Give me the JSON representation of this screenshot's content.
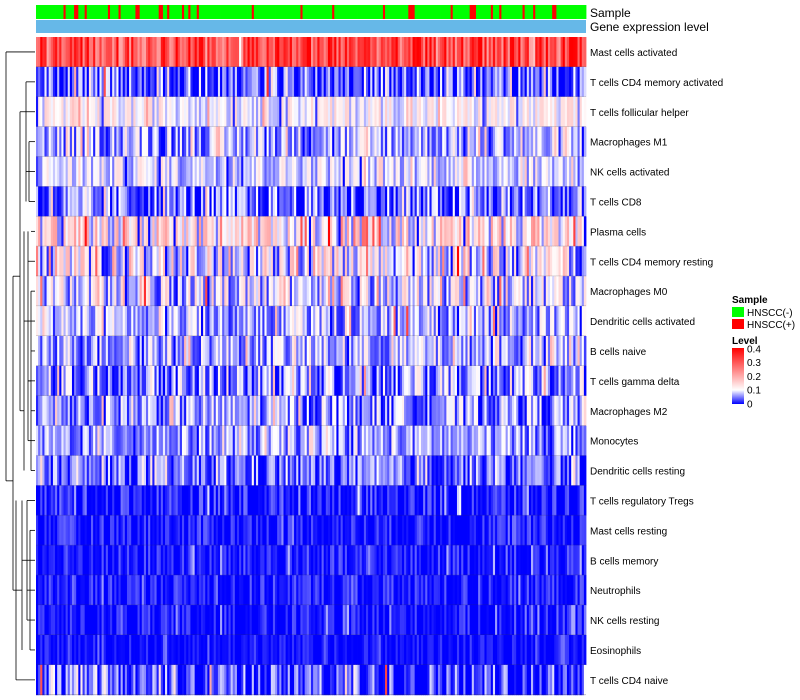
{
  "chart_data": {
    "type": "heatmap",
    "title": "",
    "annotation_tracks": [
      {
        "label": "Sample",
        "kind": "categorical"
      },
      {
        "label": "Gene expression level",
        "kind": "continuous"
      }
    ],
    "rows": [
      {
        "label": "Mast cells activated",
        "mean": 0.32,
        "spread": 0.1,
        "red_frac": 0.45
      },
      {
        "label": "T cells CD4 memory activated",
        "mean": 0.04,
        "spread": 0.06,
        "red_frac": 0.02
      },
      {
        "label": "T cells follicular helper",
        "mean": 0.11,
        "spread": 0.05,
        "red_frac": 0.0
      },
      {
        "label": "Macrophages M1",
        "mean": 0.07,
        "spread": 0.06,
        "red_frac": 0.0
      },
      {
        "label": "NK cells activated",
        "mean": 0.09,
        "spread": 0.05,
        "red_frac": 0.0
      },
      {
        "label": "T cells CD8",
        "mean": 0.04,
        "spread": 0.07,
        "red_frac": 0.0
      },
      {
        "label": "Plasma cells",
        "mean": 0.13,
        "spread": 0.09,
        "red_frac": 0.03
      },
      {
        "label": "T cells CD4 memory resting",
        "mean": 0.1,
        "spread": 0.09,
        "red_frac": 0.01
      },
      {
        "label": "Macrophages M0",
        "mean": 0.09,
        "spread": 0.08,
        "red_frac": 0.01
      },
      {
        "label": "Dendritic cells activated",
        "mean": 0.07,
        "spread": 0.06,
        "red_frac": 0.01
      },
      {
        "label": "B cells naive",
        "mean": 0.07,
        "spread": 0.06,
        "red_frac": 0.0
      },
      {
        "label": "T cells gamma delta",
        "mean": 0.06,
        "spread": 0.07,
        "red_frac": 0.01
      },
      {
        "label": "Macrophages M2",
        "mean": 0.06,
        "spread": 0.06,
        "red_frac": 0.0
      },
      {
        "label": "Monocytes",
        "mean": 0.06,
        "spread": 0.05,
        "red_frac": 0.0
      },
      {
        "label": "Dendritic cells resting",
        "mean": 0.04,
        "spread": 0.05,
        "red_frac": 0.0
      },
      {
        "label": "T cells regulatory  Tregs",
        "mean": 0.01,
        "spread": 0.04,
        "red_frac": 0.0
      },
      {
        "label": "Mast cells resting",
        "mean": 0.01,
        "spread": 0.03,
        "red_frac": 0.0
      },
      {
        "label": "B cells memory",
        "mean": 0.01,
        "spread": 0.03,
        "red_frac": 0.0
      },
      {
        "label": "Neutrophils",
        "mean": 0.01,
        "spread": 0.03,
        "red_frac": 0.0
      },
      {
        "label": "NK cells resting",
        "mean": 0.005,
        "spread": 0.03,
        "red_frac": 0.0
      },
      {
        "label": "Eosinophils",
        "mean": 0.005,
        "spread": 0.02,
        "red_frac": 0.0
      },
      {
        "label": "T cells CD4 naive",
        "mean": 0.03,
        "spread": 0.06,
        "red_frac": 0.01
      }
    ],
    "n_samples": 260,
    "sample_groups": [
      "HNSCC(-)",
      "HNSCC(+)"
    ],
    "sample_group_share": [
      0.85,
      0.15
    ],
    "color_scale": {
      "min": 0,
      "max": 0.4,
      "colors": [
        "#0000ff",
        "#ffffff",
        "#ff0000"
      ]
    },
    "legend": {
      "position": "right",
      "sample_title": "Sample",
      "sample_items": [
        {
          "label": "HNSCC(-)",
          "color": "#00ff00"
        },
        {
          "label": "HNSCC(+)",
          "color": "#ff0000"
        }
      ],
      "level_title": "Level",
      "level_ticks": [
        "0.4",
        "0.3",
        "0.2",
        "0.1",
        "0"
      ]
    },
    "colors": {
      "low": "#0000ff",
      "mid": "#ffffff",
      "high": "#ff0000",
      "expression_track": "#66b8e8",
      "dendrogram": "#000000"
    }
  }
}
